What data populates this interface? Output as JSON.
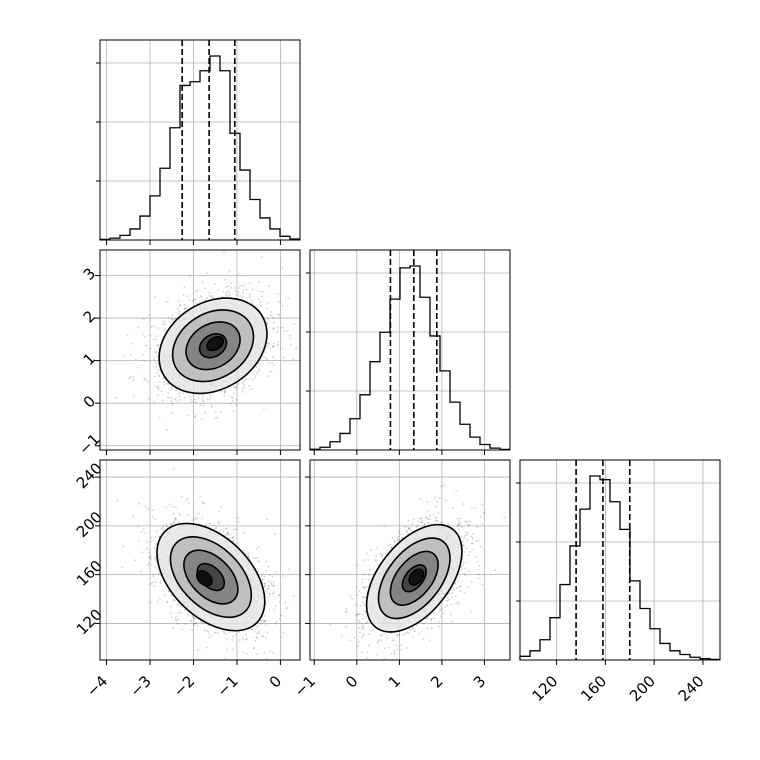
{
  "chart_data": {
    "type": "corner",
    "title": "",
    "parameters": [
      {
        "ticks": [
          -4,
          -3,
          -2,
          -1,
          0
        ],
        "range": [
          -4.15,
          0.45
        ],
        "quantile_lines": [
          -2.26,
          -1.64,
          -1.05
        ]
      },
      {
        "ticks": [
          -1,
          0,
          1,
          2,
          3
        ],
        "range": [
          -1.1,
          3.6
        ],
        "quantile_lines": [
          0.79,
          1.34,
          1.88
        ]
      },
      {
        "ticks": [
          120,
          160,
          200,
          240
        ],
        "range": [
          90,
          254
        ],
        "quantile_lines": [
          136,
          158,
          180
        ]
      }
    ],
    "tick_labels": {
      "x": [
        [
          "−4",
          "−3",
          "−2",
          "−1",
          "0"
        ],
        [
          "−1",
          "0",
          "1",
          "2",
          "3"
        ],
        [
          "120",
          "160",
          "200",
          "240"
        ]
      ],
      "y": [
        [
          "−1",
          "0",
          "1",
          "2",
          "3"
        ],
        [
          "120",
          "160",
          "200",
          "240"
        ]
      ]
    },
    "histograms": [
      {
        "bin_edges": [
          -4.15,
          -3.92,
          -3.69,
          -3.46,
          -3.23,
          -3.0,
          -2.77,
          -2.54,
          -2.31,
          -2.08,
          -1.85,
          -1.62,
          -1.39,
          -1.16,
          -0.93,
          -0.7,
          -0.47,
          -0.24,
          -0.01,
          0.22,
          0.45
        ],
        "counts": [
          0.003,
          0.01,
          0.025,
          0.06,
          0.13,
          0.24,
          0.39,
          0.61,
          0.84,
          0.86,
          0.92,
          1.0,
          0.92,
          0.58,
          0.38,
          0.22,
          0.12,
          0.06,
          0.02,
          0.005
        ]
      },
      {
        "bin_edges": [
          -1.1,
          -0.865,
          -0.63,
          -0.395,
          -0.16,
          0.075,
          0.31,
          0.545,
          0.78,
          1.015,
          1.25,
          1.485,
          1.72,
          1.955,
          2.19,
          2.425,
          2.66,
          2.895,
          3.13,
          3.365,
          3.6
        ],
        "counts": [
          0.004,
          0.015,
          0.045,
          0.09,
          0.17,
          0.3,
          0.48,
          0.64,
          0.82,
          0.99,
          1.0,
          0.83,
          0.62,
          0.43,
          0.26,
          0.14,
          0.07,
          0.03,
          0.01,
          0.003
        ]
      },
      {
        "bin_edges": [
          90.0,
          98.2,
          106.4,
          114.6,
          122.8,
          131.0,
          139.2,
          147.4,
          155.6,
          163.8,
          172.0,
          180.2,
          188.4,
          196.6,
          204.8,
          213.0,
          221.2,
          229.4,
          237.6,
          245.8,
          254.0
        ],
        "counts": [
          0.02,
          0.05,
          0.11,
          0.23,
          0.41,
          0.62,
          0.82,
          1.0,
          0.98,
          0.86,
          0.71,
          0.43,
          0.28,
          0.17,
          0.09,
          0.05,
          0.03,
          0.015,
          0.007,
          0.003
        ]
      }
    ],
    "joint_panels": [
      {
        "x_param": 0,
        "y_param": 1,
        "center": [
          -1.55,
          1.35
        ],
        "peak": [
          -1.5,
          1.4
        ],
        "sd": [
          0.62,
          0.56
        ],
        "rho": 0.25,
        "levels_sigma": [
          0.5,
          1.0,
          1.5,
          2.0
        ],
        "n_points": 2400,
        "seed": 7
      },
      {
        "x_param": 0,
        "y_param": 2,
        "center": [
          -1.6,
          158.0
        ],
        "peak": [
          -1.75,
          157.0
        ],
        "sd": [
          0.62,
          22.0
        ],
        "rho": -0.45,
        "levels_sigma": [
          0.5,
          1.0,
          1.5,
          2.0
        ],
        "n_points": 2400,
        "seed": 11
      },
      {
        "x_param": 1,
        "y_param": 2,
        "center": [
          1.35,
          157.0
        ],
        "peak": [
          1.4,
          158.0
        ],
        "sd": [
          0.56,
          22.0
        ],
        "rho": 0.5,
        "levels_sigma": [
          0.5,
          1.0,
          1.5,
          2.0
        ],
        "n_points": 2400,
        "seed": 23
      }
    ],
    "grid": true,
    "legend": "none"
  }
}
